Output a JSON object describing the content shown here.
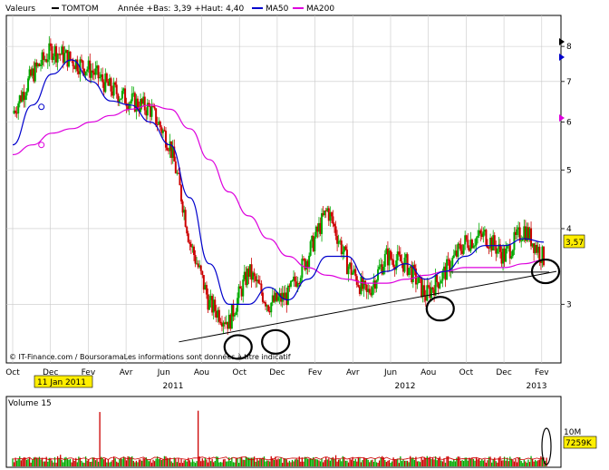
{
  "header": {
    "series_label": "Valeurs",
    "ticker": "TOMTOM",
    "range_text": "Année +Bas: 3,39 +Haut: 4,40",
    "ma50_label": "MA50",
    "ma200_label": "MA200"
  },
  "footer": {
    "credit": "© IT-Finance.com / BoursoramaLes informations sont données à titre indicatif"
  },
  "price_tag": "3,57",
  "volume_tag": "7259K",
  "date_badge": "11 Jan 2011",
  "volume_panel": {
    "title": "Volume 15",
    "tick": "10M"
  },
  "colors": {
    "up": "#00aa00",
    "down": "#cc0000",
    "ma50": "#0000cc",
    "ma200": "#dd00dd",
    "price_tag_bg": "#ffee00",
    "grid": "#c8c8c8"
  },
  "chart_data": [
    {
      "type": "line",
      "title": "TOMTOM",
      "y_scale": "log",
      "ylim": [
        2.4,
        9.0
      ],
      "yticks": [
        "3",
        "4",
        "5",
        "6",
        "7",
        "8"
      ],
      "x_tick_labels": [
        "Oct",
        "Dec",
        "Fev",
        "Avr",
        "Jun",
        "Aou",
        "Oct",
        "Dec",
        "Fev",
        "Avr",
        "Jun",
        "Aou",
        "Oct",
        "Dec",
        "Fev"
      ],
      "year_labels": [
        "2011",
        "2012",
        "2013"
      ],
      "grid": true,
      "series": [
        {
          "name": "TOMTOM",
          "style": "candlestick",
          "x": [
            "2010-10",
            "2010-11",
            "2010-12",
            "2011-01",
            "2011-02",
            "2011-03",
            "2011-04",
            "2011-05",
            "2011-06",
            "2011-07",
            "2011-08",
            "2011-09",
            "2011-10",
            "2011-11",
            "2011-12",
            "2012-01",
            "2012-02",
            "2012-03",
            "2012-04",
            "2012-05",
            "2012-06",
            "2012-07",
            "2012-08",
            "2012-09",
            "2012-10",
            "2012-11",
            "2012-12",
            "2013-01"
          ],
          "values": [
            6.2,
            7.2,
            7.9,
            7.6,
            7.3,
            6.8,
            6.5,
            6.3,
            5.5,
            3.8,
            3.0,
            2.8,
            3.4,
            3.0,
            3.1,
            3.6,
            4.3,
            3.5,
            3.1,
            3.6,
            3.5,
            3.1,
            3.4,
            3.8,
            3.9,
            3.6,
            4.0,
            3.57
          ]
        },
        {
          "name": "MA50",
          "x": [
            "2010-10",
            "2010-11",
            "2010-12",
            "2011-01",
            "2011-02",
            "2011-03",
            "2011-04",
            "2011-05",
            "2011-06",
            "2011-07",
            "2011-08",
            "2011-09",
            "2011-10",
            "2011-11",
            "2011-12",
            "2012-01",
            "2012-02",
            "2012-03",
            "2012-04",
            "2012-05",
            "2012-06",
            "2012-07",
            "2012-08",
            "2012-09",
            "2012-10",
            "2012-11",
            "2012-12",
            "2013-01"
          ],
          "values": [
            5.5,
            6.4,
            7.2,
            7.6,
            7.0,
            6.5,
            6.4,
            6.0,
            5.5,
            4.5,
            3.5,
            3.0,
            3.0,
            3.2,
            3.05,
            3.3,
            3.6,
            3.6,
            3.3,
            3.4,
            3.5,
            3.3,
            3.4,
            3.6,
            3.75,
            3.75,
            3.85,
            3.8
          ]
        },
        {
          "name": "MA200",
          "x": [
            "2010-10",
            "2010-11",
            "2010-12",
            "2011-01",
            "2011-02",
            "2011-03",
            "2011-04",
            "2011-05",
            "2011-06",
            "2011-07",
            "2011-08",
            "2011-09",
            "2011-10",
            "2011-11",
            "2011-12",
            "2012-01",
            "2012-02",
            "2012-03",
            "2012-04",
            "2012-05",
            "2012-06",
            "2012-07",
            "2012-08",
            "2012-09",
            "2012-10",
            "2012-11",
            "2012-12",
            "2013-01"
          ],
          "values": [
            5.3,
            5.5,
            5.75,
            5.85,
            6.0,
            6.15,
            6.3,
            6.4,
            6.3,
            5.85,
            5.2,
            4.6,
            4.2,
            3.85,
            3.6,
            3.45,
            3.35,
            3.3,
            3.25,
            3.25,
            3.3,
            3.35,
            3.4,
            3.45,
            3.45,
            3.45,
            3.5,
            3.55
          ]
        }
      ],
      "annotations": {
        "support_line": {
          "from": {
            "x": "2010-12",
            "y": 2.6
          },
          "to": {
            "x": "2013-01",
            "y": 3.4
          }
        },
        "horizontal_line": {
          "from": "2012-07",
          "to": "2013-01",
          "y": 3.39
        },
        "circled_lows": [
          {
            "x": "2011-09",
            "y": 2.55
          },
          {
            "x": "2011-11",
            "y": 2.6
          },
          {
            "x": "2012-07",
            "y": 2.95
          },
          {
            "x": "2013-01",
            "y": 3.4
          }
        ]
      }
    },
    {
      "type": "bar",
      "title": "Volume 15",
      "ylim": [
        0,
        14
      ],
      "yticks": [
        "10M"
      ],
      "x": [
        "2010-10",
        "2010-11",
        "2010-12",
        "2011-01",
        "2011-02",
        "2011-03",
        "2011-04",
        "2011-05",
        "2011-06",
        "2011-07",
        "2011-08",
        "2011-09",
        "2011-10",
        "2011-11",
        "2011-12",
        "2012-01",
        "2012-02",
        "2012-03",
        "2012-04",
        "2012-05",
        "2012-06",
        "2012-07",
        "2012-08",
        "2012-09",
        "2012-10",
        "2012-11",
        "2012-12",
        "2013-01"
      ],
      "values": [
        1.2,
        1.4,
        2.5,
        1.8,
        12.5,
        1.5,
        1.4,
        1.5,
        1.7,
        12.8,
        2.0,
        1.8,
        1.6,
        1.4,
        1.6,
        1.5,
        2.4,
        1.5,
        1.6,
        1.4,
        1.3,
        1.4,
        1.5,
        1.5,
        1.4,
        1.3,
        1.6,
        7.3
      ]
    }
  ]
}
